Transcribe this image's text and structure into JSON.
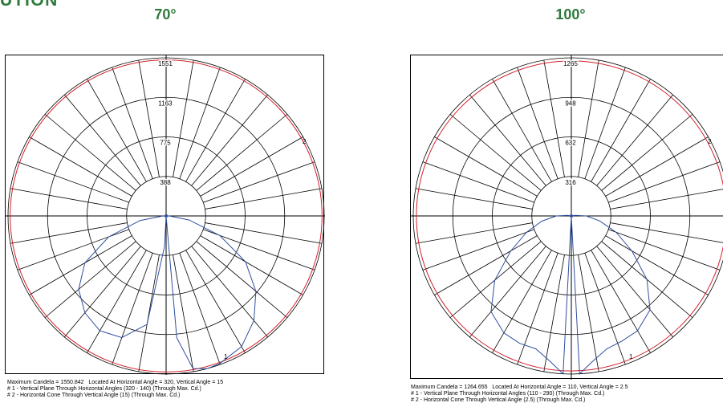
{
  "page": {
    "section_title": "UTION",
    "colors": {
      "heading": "#2e7a3c",
      "grid": "#000000",
      "cone_curve": "#d0202a",
      "plane_curve": "#2f4f9f"
    }
  },
  "chart_data": [
    {
      "type": "polar",
      "title": "70°",
      "radial_ticks": [
        "388",
        "775",
        "1163",
        "1551"
      ],
      "rmax": 1551,
      "grid": true,
      "curve_labels": {
        "plane": "1",
        "cone": "2"
      },
      "series": [
        {
          "name": "# 1 - Vertical Plane Through Horizontal Angles (320 - 140) (Through Max. Cd.)",
          "color": "#2f4f9f",
          "points_polar_deg": [
            [
              -179,
              0
            ],
            [
              -177,
              300
            ],
            [
              -170,
              1080
            ],
            [
              -160,
              1270
            ],
            [
              -150,
              1300
            ],
            [
              -140,
              1240
            ],
            [
              -130,
              1120
            ],
            [
              -120,
              920
            ],
            [
              -110,
              600
            ],
            [
              -100,
              260
            ],
            [
              -92,
              40
            ],
            [
              0,
              0
            ],
            [
              92,
              40
            ],
            [
              100,
              230
            ],
            [
              110,
              560
            ],
            [
              120,
              900
            ],
            [
              130,
              1150
            ],
            [
              140,
              1340
            ],
            [
              150,
              1480
            ],
            [
              160,
              1540
            ],
            [
              165,
              1551
            ],
            [
              170,
              1520
            ],
            [
              175,
              1200
            ],
            [
              179,
              0
            ]
          ]
        },
        {
          "name": "# 2 - Horizontal Cone Through Vertical Angle (15) (Through Max. Cd.)",
          "color": "#d0202a",
          "radius": 1530
        }
      ],
      "caption": {
        "max_line": "Maximum Candela = 1550.842   Located At Horizontal Angle = 320, Vertical Angle = 15",
        "line1": "# 1 - Vertical Plane Through Horizontal Angles (320 - 140) (Through Max. Cd.)",
        "line2": "# 2 - Horizontal Cone Through Vertical Angle (15) (Through Max. Cd.)"
      }
    },
    {
      "type": "polar",
      "title": "100°",
      "radial_ticks": [
        "316",
        "632",
        "948",
        "1265"
      ],
      "rmax": 1265,
      "grid": true,
      "curve_labels": {
        "plane": "1",
        "cone": "2"
      },
      "series": [
        {
          "name": "# 1 - Vertical Plane Through Horizontal Angles (110 - 290) (Through Max. Cd.)",
          "color": "#2f4f9f",
          "points_polar_deg": [
            [
              -179,
              0
            ],
            [
              -177,
              1265
            ],
            [
              -172,
              1180
            ],
            [
              -165,
              1100
            ],
            [
              -158,
              1100
            ],
            [
              -150,
              1080
            ],
            [
              -140,
              1000
            ],
            [
              -130,
              800
            ],
            [
              -120,
              560
            ],
            [
              -110,
              380
            ],
            [
              -100,
              240
            ],
            [
              -90,
              120
            ],
            [
              -80,
              30
            ],
            [
              0,
              0
            ],
            [
              80,
              30
            ],
            [
              90,
              120
            ],
            [
              100,
              230
            ],
            [
              110,
              380
            ],
            [
              120,
              560
            ],
            [
              130,
              790
            ],
            [
              140,
              980
            ],
            [
              150,
              1060
            ],
            [
              158,
              1080
            ],
            [
              165,
              1100
            ],
            [
              172,
              1180
            ],
            [
              177,
              1265
            ],
            [
              179,
              0
            ]
          ]
        },
        {
          "name": "# 2 - Horizontal Cone Through Vertical Angle (2.5) (Through Max. Cd.)",
          "color": "#d0202a",
          "radius": 1240
        }
      ],
      "caption": {
        "max_line": "Maximum Candela = 1264.655   Located At Horizontal Angle = 110, Vertical Angle = 2.5",
        "line1": "# 1 - Vertical Plane Through Horizontal Angles (110 - 290) (Through Max. Cd.)",
        "line2": "# 2 - Horizontal Cone Through Vertical Angle (2.5) (Through Max. Cd.)"
      }
    }
  ]
}
